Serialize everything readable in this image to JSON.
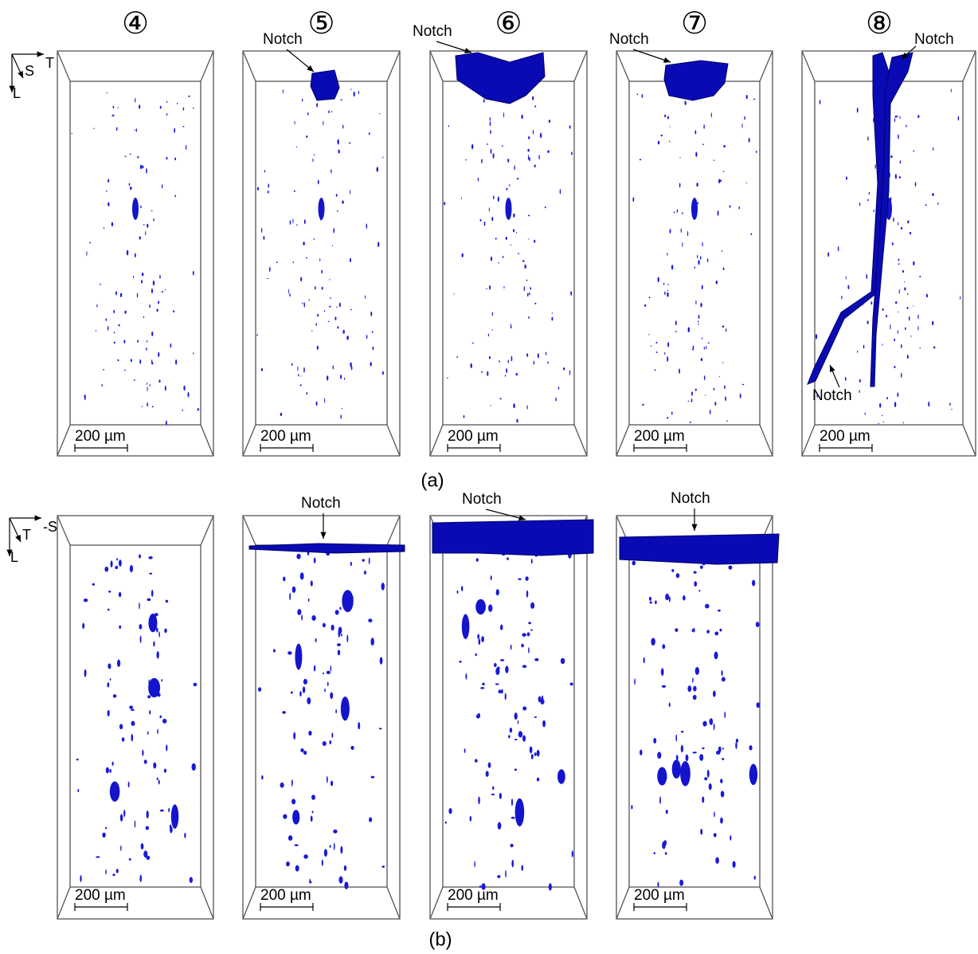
{
  "panel_a": {
    "label": "(a)",
    "axes": {
      "right": "T",
      "diag": "S",
      "down": "L"
    },
    "samples": [
      {
        "id": "④",
        "scale_bar": "200 µm",
        "notches": []
      },
      {
        "id": "⑤",
        "scale_bar": "200 µm",
        "notches": [
          "Notch"
        ]
      },
      {
        "id": "⑥",
        "scale_bar": "200 µm",
        "notches": [
          "Notch"
        ]
      },
      {
        "id": "⑦",
        "scale_bar": "200 µm",
        "notches": [
          "Notch"
        ]
      },
      {
        "id": "⑧",
        "scale_bar": "200 µm",
        "notches": [
          "Notch",
          "Notch"
        ]
      }
    ]
  },
  "panel_b": {
    "label": "(b)",
    "axes": {
      "right": "-S",
      "diag": "T",
      "down": "L"
    },
    "samples": [
      {
        "scale_bar": "200 µm",
        "notches": []
      },
      {
        "scale_bar": "200 µm",
        "notches": [
          "Notch"
        ]
      },
      {
        "scale_bar": "200 µm",
        "notches": [
          "Notch"
        ]
      },
      {
        "scale_bar": "200 µm",
        "notches": [
          "Notch"
        ]
      }
    ]
  }
}
